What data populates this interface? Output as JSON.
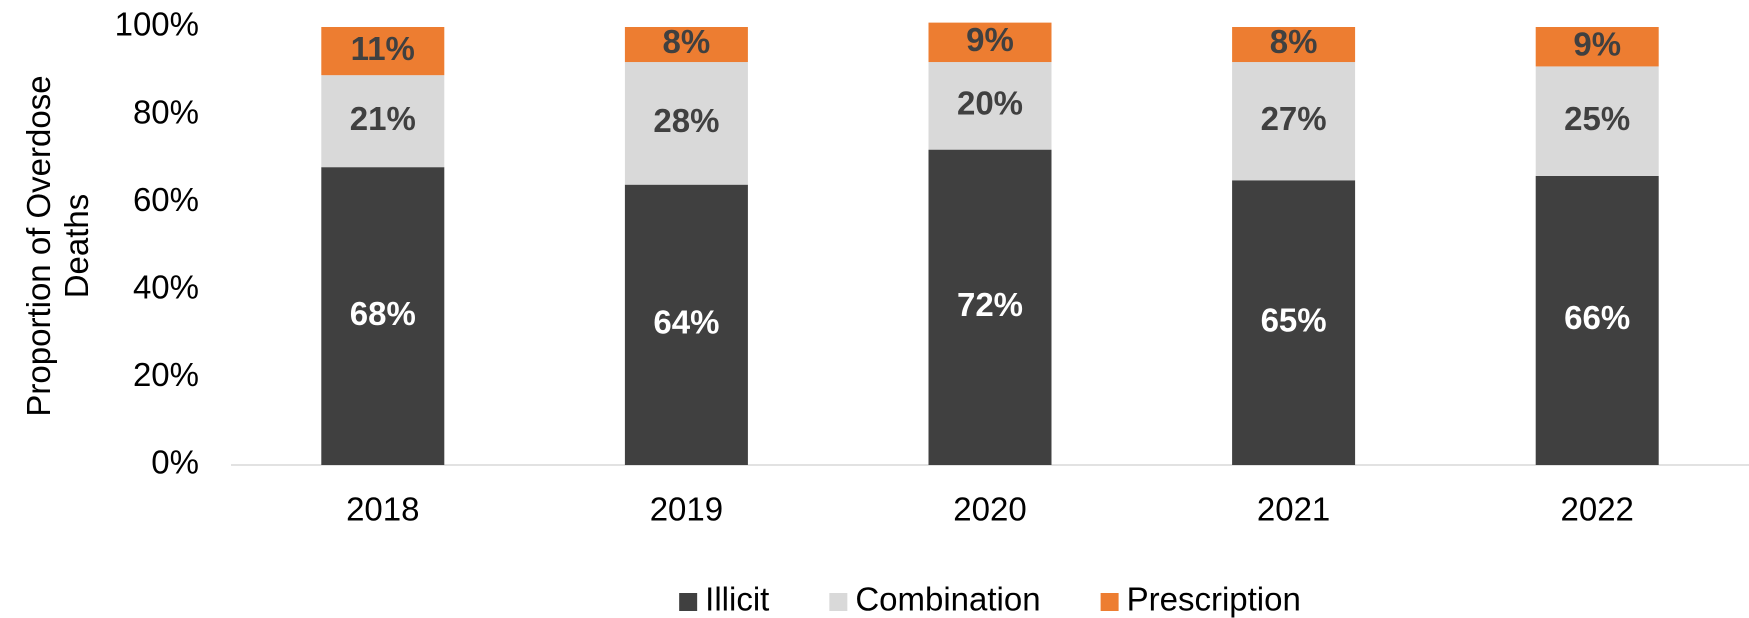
{
  "chart_data": {
    "type": "stacked_bar",
    "ylabel": "Proportion of Overdose Deaths",
    "categories": [
      "2018",
      "2019",
      "2020",
      "2021",
      "2022"
    ],
    "series": [
      {
        "name": "Illicit",
        "color": "#404040",
        "label_color": "#ffffff",
        "values": [
          68,
          64,
          72,
          65,
          66
        ],
        "value_labels": [
          "68%",
          "64%",
          "72%",
          "65%",
          "66%"
        ]
      },
      {
        "name": "Combination",
        "color": "#d9d9d9",
        "label_color": "#404040",
        "values": [
          21,
          28,
          20,
          27,
          25
        ],
        "value_labels": [
          "21%",
          "28%",
          "20%",
          "27%",
          "25%"
        ]
      },
      {
        "name": "Prescription",
        "color": "#ed7d31",
        "label_color": "#404040",
        "values": [
          11,
          8,
          9,
          8,
          9
        ],
        "value_labels": [
          "11%",
          "8%",
          "9%",
          "8%",
          "9%"
        ]
      }
    ],
    "ylim": [
      0,
      100
    ],
    "yticks": [
      {
        "value": 0,
        "label": "0%"
      },
      {
        "value": 20,
        "label": "20%"
      },
      {
        "value": 40,
        "label": "40%"
      },
      {
        "value": 60,
        "label": "60%"
      },
      {
        "value": 80,
        "label": "80%"
      },
      {
        "value": 100,
        "label": "100%"
      }
    ],
    "legend": "bottom"
  }
}
